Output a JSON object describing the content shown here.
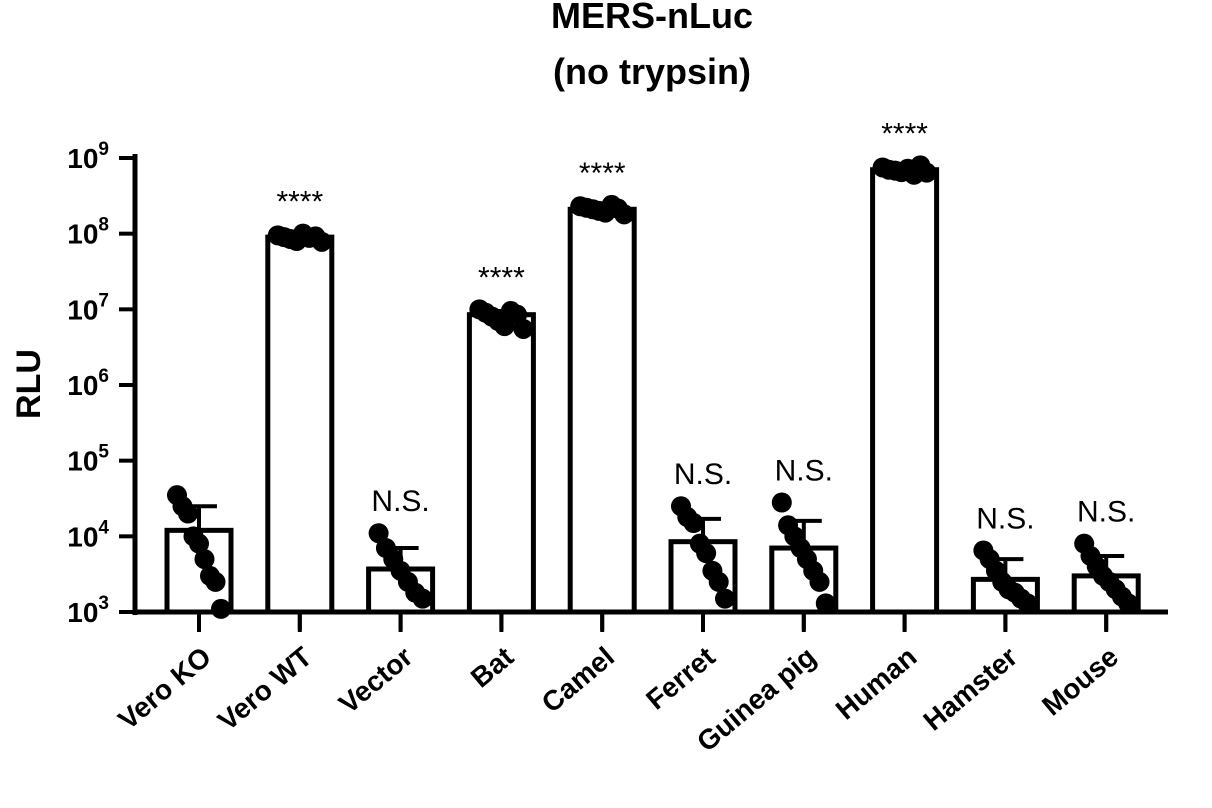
{
  "chart_data": {
    "type": "bar",
    "title": [
      "MERS-nLuc",
      "(no trypsin)"
    ],
    "ylabel": "RLU",
    "xlabel": "",
    "yscale": "log",
    "ylim": [
      1000,
      1000000000
    ],
    "y_tick_exponents": [
      "3",
      "4",
      "5",
      "6",
      "7",
      "8",
      "9"
    ],
    "y_tick_base": "10",
    "grid": false,
    "categories": [
      "Vero KO",
      "Vero WT",
      "Vector",
      "Bat",
      "Camel",
      "Ferret",
      "Guinea pig",
      "Human",
      "Hamster",
      "Mouse"
    ],
    "values": [
      12000,
      90000000,
      3700,
      8500000,
      210000000,
      8500,
      7000,
      700000000,
      2700,
      3000
    ],
    "error_upper": [
      25000,
      100000000,
      7000,
      9500000,
      230000000,
      17000,
      16000,
      760000000,
      5000,
      5500
    ],
    "significance": [
      "",
      "****",
      "N.S.",
      "****",
      "****",
      "N.S.",
      "N.S.",
      "****",
      "N.S.",
      "N.S."
    ],
    "points": [
      [
        35000,
        25000,
        20000,
        10000,
        8000,
        5000,
        3000,
        2500,
        1100
      ],
      [
        95000000,
        90000000,
        85000000,
        80000000,
        100000000,
        88000000,
        92000000,
        78000000
      ],
      [
        11000,
        7000,
        5000,
        3500,
        2500,
        1800,
        1500
      ],
      [
        10000000,
        9000000,
        8000000,
        7000000,
        6000000,
        9500000,
        8500000,
        5500000
      ],
      [
        230000000,
        220000000,
        210000000,
        200000000,
        190000000,
        240000000,
        215000000,
        180000000
      ],
      [
        25000,
        18000,
        15000,
        8000,
        6000,
        3500,
        2500,
        1500
      ],
      [
        28000,
        14000,
        10000,
        7000,
        5000,
        3500,
        2500,
        1300
      ],
      [
        750000000,
        700000000,
        680000000,
        650000000,
        720000000,
        600000000,
        800000000,
        640000000
      ],
      [
        6500,
        5000,
        3500,
        2500,
        2000,
        1800,
        1500,
        1300
      ],
      [
        8000,
        5500,
        4000,
        3000,
        2500,
        2000,
        1600,
        1300
      ]
    ]
  }
}
